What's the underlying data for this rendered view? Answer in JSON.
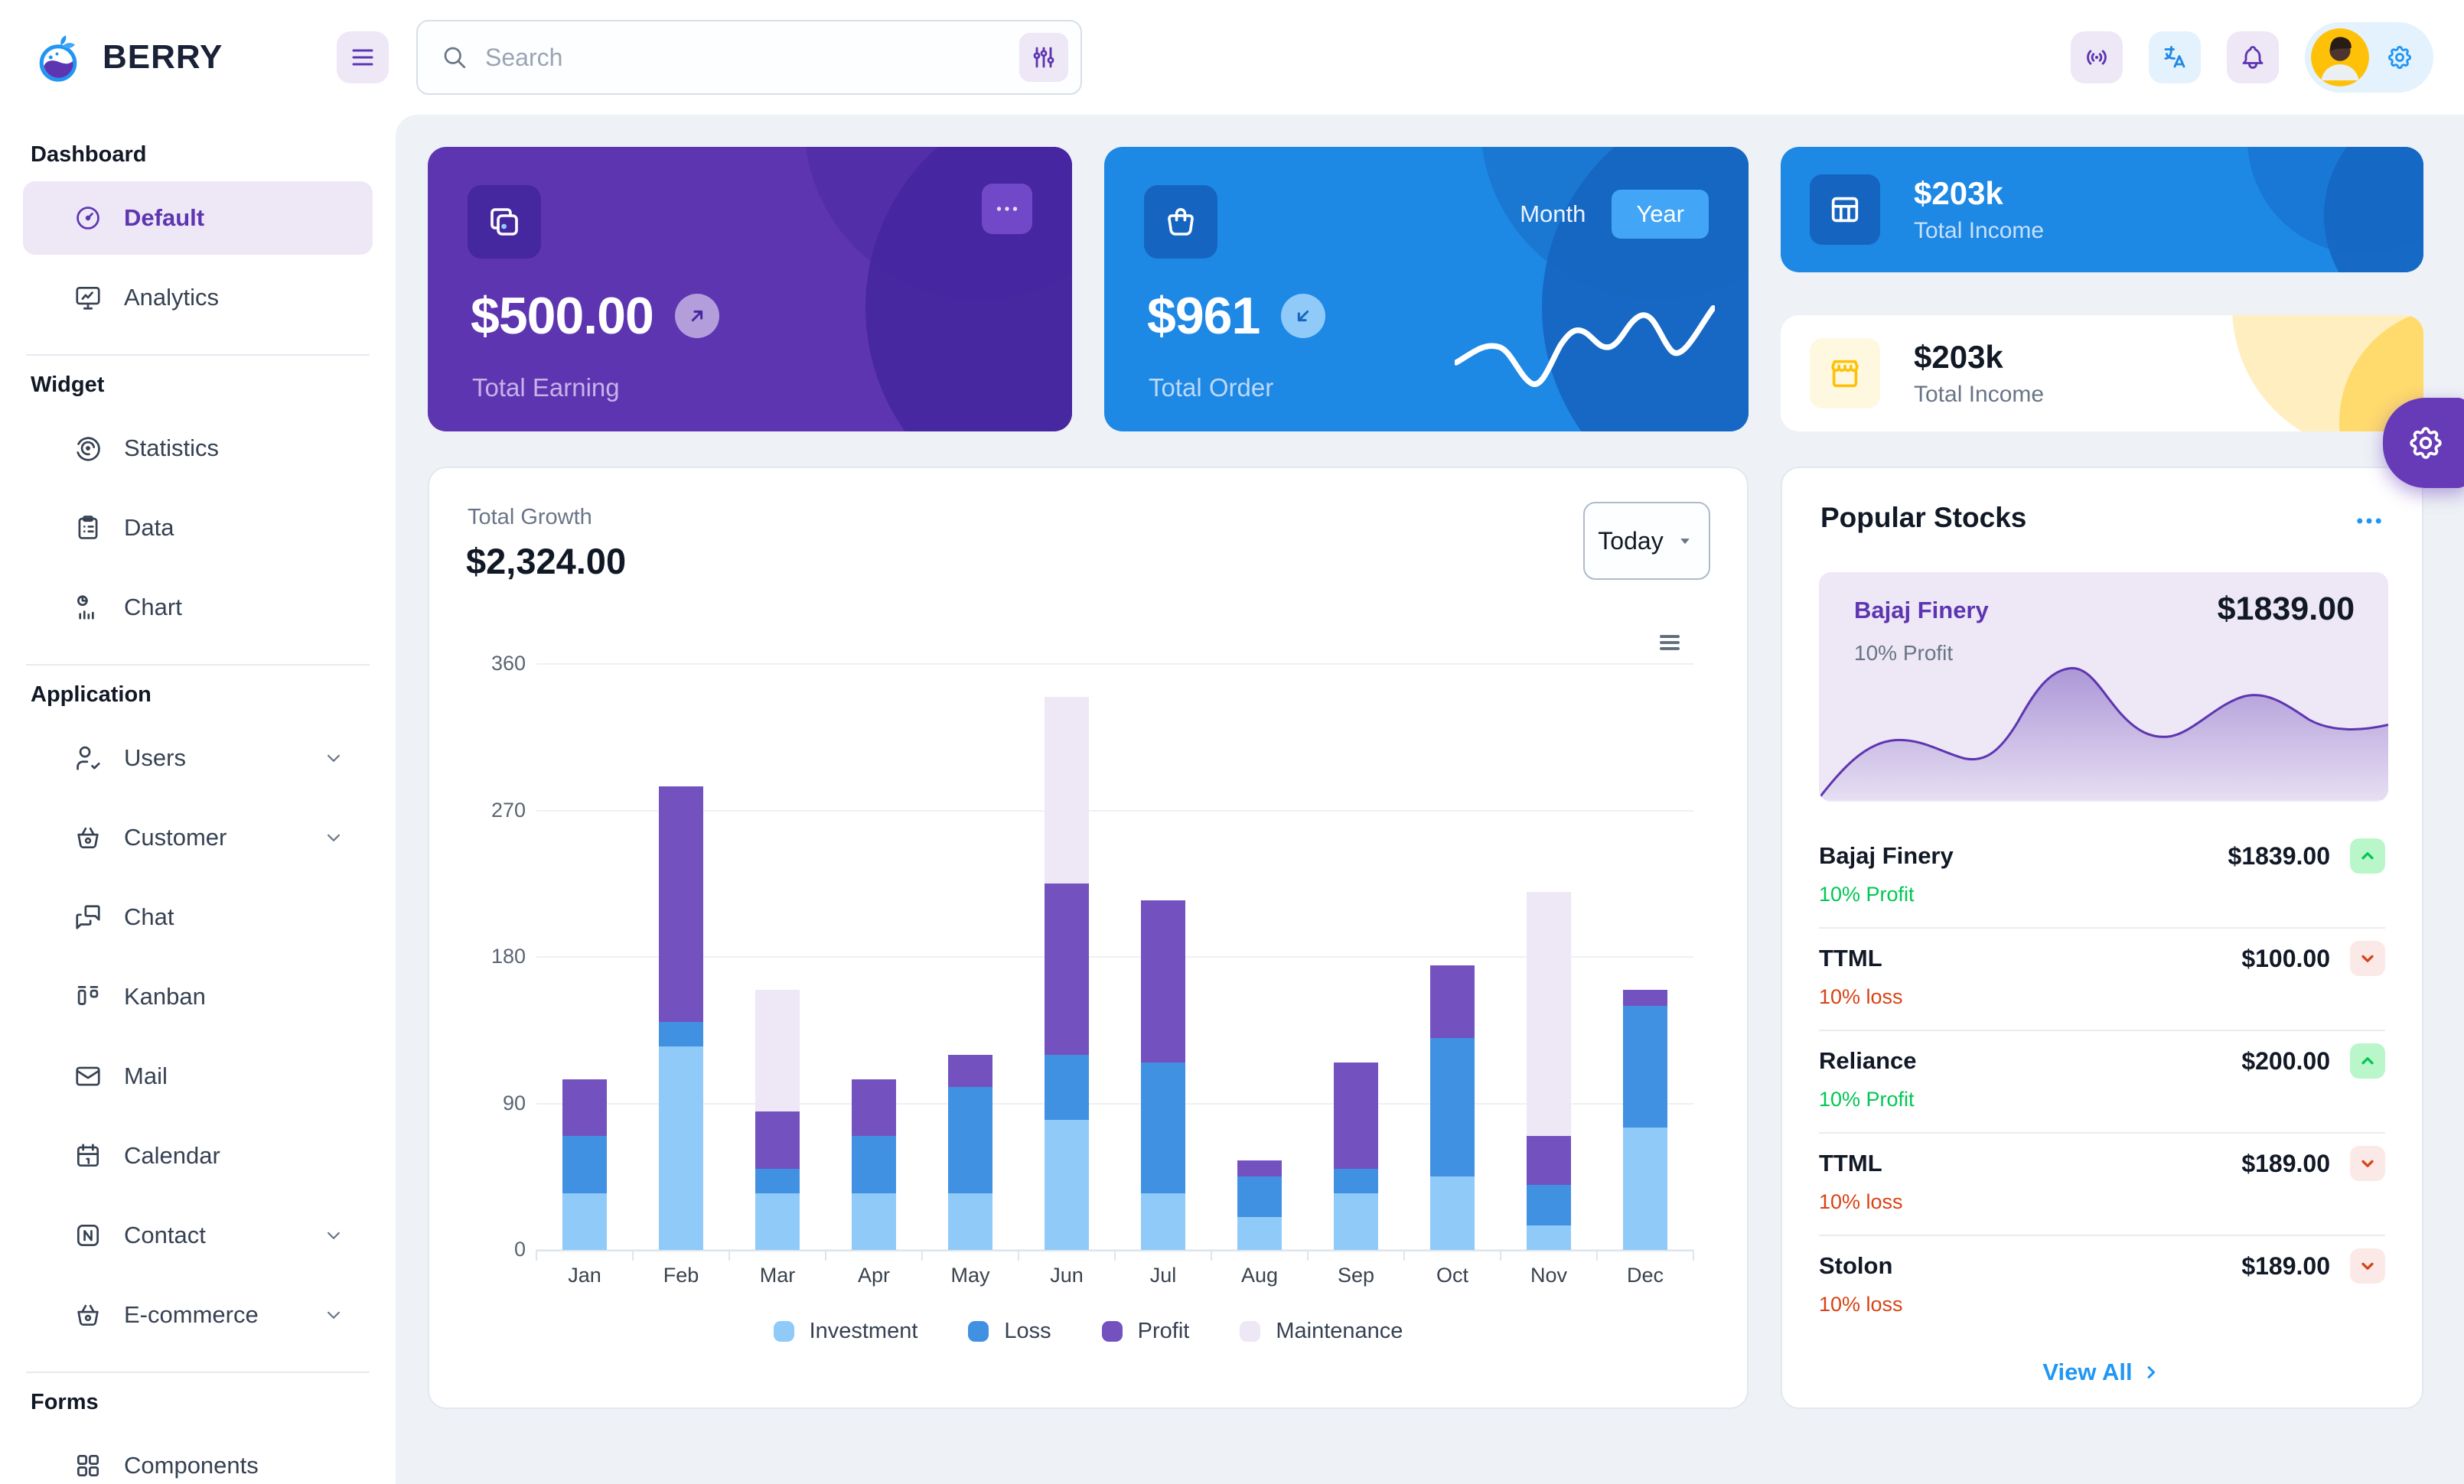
{
  "header": {
    "brand": "BERRY",
    "search": {
      "placeholder": "Search"
    }
  },
  "sidebar": {
    "sections": [
      {
        "title": "Dashboard",
        "items": [
          {
            "label": "Default",
            "icon": "gauge",
            "active": true
          },
          {
            "label": "Analytics",
            "icon": "monitor"
          }
        ]
      },
      {
        "title": "Widget",
        "items": [
          {
            "label": "Statistics",
            "icon": "radar"
          },
          {
            "label": "Data",
            "icon": "clipboard"
          },
          {
            "label": "Chart",
            "icon": "piebar"
          }
        ]
      },
      {
        "title": "Application",
        "items": [
          {
            "label": "Users",
            "icon": "usercheck",
            "chevron": true
          },
          {
            "label": "Customer",
            "icon": "basket",
            "chevron": true
          },
          {
            "label": "Chat",
            "icon": "chat"
          },
          {
            "label": "Kanban",
            "icon": "kanban"
          },
          {
            "label": "Mail",
            "icon": "mail"
          },
          {
            "label": "Calendar",
            "icon": "calendar"
          },
          {
            "label": "Contact",
            "icon": "contact",
            "chevron": true
          },
          {
            "label": "E-commerce",
            "icon": "basket",
            "chevron": true
          }
        ]
      },
      {
        "title": "Forms",
        "items": [
          {
            "label": "Components",
            "icon": "components",
            "partial": true
          }
        ]
      }
    ]
  },
  "cards": {
    "earning": {
      "value": "$500.00",
      "label": "Total Earning"
    },
    "order": {
      "value": "$961",
      "label": "Total Order",
      "period_options": [
        "Month",
        "Year"
      ],
      "active_period": "Year"
    },
    "income_blue": {
      "value": "$203k",
      "label": "Total Income"
    },
    "income_light": {
      "value": "$203k",
      "label": "Total Income"
    }
  },
  "growth": {
    "title": "Total Growth",
    "value": "$2,324.00",
    "period": "Today",
    "chart_data": {
      "type": "bar",
      "stacked": true,
      "categories": [
        "Jan",
        "Feb",
        "Mar",
        "Apr",
        "May",
        "Jun",
        "Jul",
        "Aug",
        "Sep",
        "Oct",
        "Nov",
        "Dec"
      ],
      "series": [
        {
          "name": "Investment",
          "color": "#90caf9",
          "values": [
            35,
            125,
            35,
            35,
            35,
            80,
            35,
            20,
            35,
            45,
            15,
            75
          ]
        },
        {
          "name": "Loss",
          "color": "#4191e2",
          "values": [
            35,
            15,
            15,
            35,
            65,
            40,
            80,
            25,
            15,
            85,
            25,
            75
          ]
        },
        {
          "name": "Profit",
          "color": "#7352c0",
          "values": [
            35,
            145,
            35,
            35,
            20,
            105,
            100,
            10,
            65,
            45,
            30,
            10
          ]
        },
        {
          "name": "Maintenance",
          "color": "#ede7f6",
          "values": [
            0,
            0,
            75,
            0,
            0,
            115,
            0,
            0,
            0,
            0,
            150,
            0
          ]
        }
      ],
      "ylim": [
        0,
        360
      ],
      "yticks": [
        0,
        90,
        180,
        270,
        360
      ],
      "grid": true,
      "legend_position": "bottom"
    }
  },
  "stocks": {
    "title": "Popular Stocks",
    "featured": {
      "name": "Bajaj Finery",
      "price": "$1839.00",
      "change": "10% Profit"
    },
    "rows": [
      {
        "name": "Bajaj Finery",
        "price": "$1839.00",
        "change": "10% Profit",
        "direction": "up"
      },
      {
        "name": "TTML",
        "price": "$100.00",
        "change": "10% loss",
        "direction": "down"
      },
      {
        "name": "Reliance",
        "price": "$200.00",
        "change": "10% Profit",
        "direction": "up"
      },
      {
        "name": "TTML",
        "price": "$189.00",
        "change": "10% loss",
        "direction": "down"
      },
      {
        "name": "Stolon",
        "price": "$189.00",
        "change": "10% loss",
        "direction": "down"
      }
    ],
    "view_all": "View All"
  },
  "colors": {
    "accent_purple": "#5e35b1",
    "deep_purple": "#4527a0",
    "accent_blue": "#2196f3",
    "dark_blue": "#1565c0",
    "success": "#00c853",
    "danger": "#d84315",
    "warning": "#ffc107",
    "background": "#eef2f6"
  }
}
